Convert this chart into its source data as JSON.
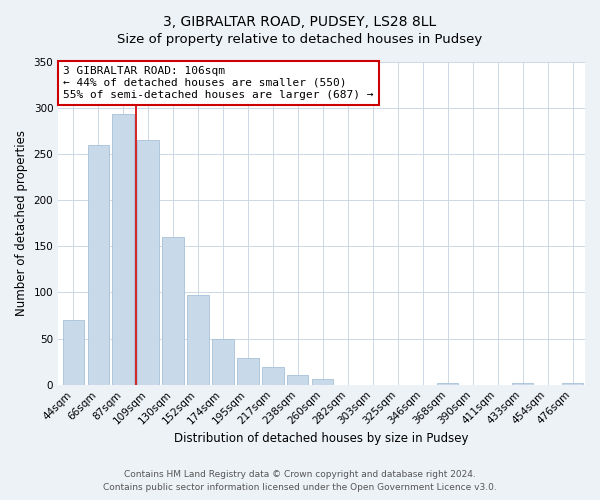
{
  "title": "3, GIBRALTAR ROAD, PUDSEY, LS28 8LL",
  "subtitle": "Size of property relative to detached houses in Pudsey",
  "xlabel": "Distribution of detached houses by size in Pudsey",
  "ylabel": "Number of detached properties",
  "bar_labels": [
    "44sqm",
    "66sqm",
    "87sqm",
    "109sqm",
    "130sqm",
    "152sqm",
    "174sqm",
    "195sqm",
    "217sqm",
    "238sqm",
    "260sqm",
    "282sqm",
    "303sqm",
    "325sqm",
    "346sqm",
    "368sqm",
    "390sqm",
    "411sqm",
    "433sqm",
    "454sqm",
    "476sqm"
  ],
  "bar_values": [
    70,
    260,
    293,
    265,
    160,
    97,
    49,
    29,
    19,
    10,
    6,
    0,
    0,
    0,
    0,
    2,
    0,
    0,
    2,
    0,
    2
  ],
  "bar_color": "#c8daea",
  "bar_edge_color": "#a8c0d8",
  "vline_x": 2.5,
  "vline_color": "#cc0000",
  "annotation_text": "3 GIBRALTAR ROAD: 106sqm\n← 44% of detached houses are smaller (550)\n55% of semi-detached houses are larger (687) →",
  "annotation_box_color": "#ffffff",
  "annotation_box_edge": "#cc0000",
  "ylim": [
    0,
    350
  ],
  "yticks": [
    0,
    50,
    100,
    150,
    200,
    250,
    300,
    350
  ],
  "footer_line1": "Contains HM Land Registry data © Crown copyright and database right 2024.",
  "footer_line2": "Contains public sector information licensed under the Open Government Licence v3.0.",
  "background_color": "#edf2f7",
  "plot_bg_color": "#ffffff",
  "title_fontsize": 10,
  "subtitle_fontsize": 9.5,
  "axis_label_fontsize": 8.5,
  "tick_fontsize": 7.5,
  "annotation_fontsize": 8,
  "footer_fontsize": 6.5
}
